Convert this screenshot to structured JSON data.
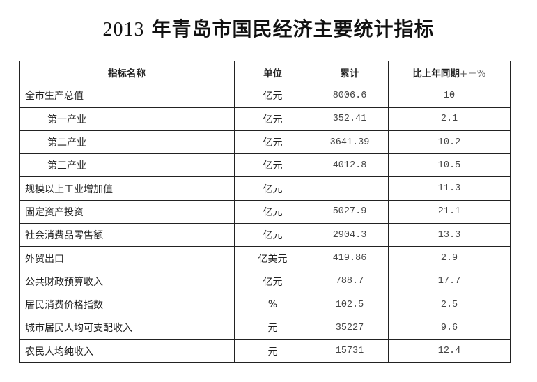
{
  "title": {
    "year": "2013",
    "text": "年青岛市国民经济主要统计指标"
  },
  "table": {
    "headers": {
      "name": "指标名称",
      "unit": "单位",
      "total": "累计",
      "change": "比上年同期",
      "change_suffix": "+－%"
    },
    "rows": [
      {
        "name": "全市生产总值",
        "unit": "亿元",
        "total": "8006.6",
        "change": "10",
        "indent": false
      },
      {
        "name": "第一产业",
        "unit": "亿元",
        "total": "352.41",
        "change": "2.1",
        "indent": true
      },
      {
        "name": "第二产业",
        "unit": "亿元",
        "total": "3641.39",
        "change": "10.2",
        "indent": true
      },
      {
        "name": "第三产业",
        "unit": "亿元",
        "total": "4012.8",
        "change": "10.5",
        "indent": true
      },
      {
        "name": "规模以上工业增加值",
        "unit": "亿元",
        "total": "—",
        "change": "11.3",
        "indent": false
      },
      {
        "name": "固定资产投资",
        "unit": "亿元",
        "total": "5027.9",
        "change": "21.1",
        "indent": false
      },
      {
        "name": "社会消费品零售额",
        "unit": "亿元",
        "total": "2904.3",
        "change": "13.3",
        "indent": false
      },
      {
        "name": "外贸出口",
        "unit": "亿美元",
        "total": "419.86",
        "change": "2.9",
        "indent": false
      },
      {
        "name": "公共财政预算收入",
        "unit": "亿元",
        "total": "788.7",
        "change": "17.7",
        "indent": false
      },
      {
        "name": "居民消费价格指数",
        "unit": "%",
        "total": "102.5",
        "change": "2.5",
        "indent": false
      },
      {
        "name": "城市居民人均可支配收入",
        "unit": "元",
        "total": "35227",
        "change": "9.6",
        "indent": false
      },
      {
        "name": "农民人均纯收入",
        "unit": "元",
        "total": "15731",
        "change": "12.4",
        "indent": false
      }
    ]
  }
}
